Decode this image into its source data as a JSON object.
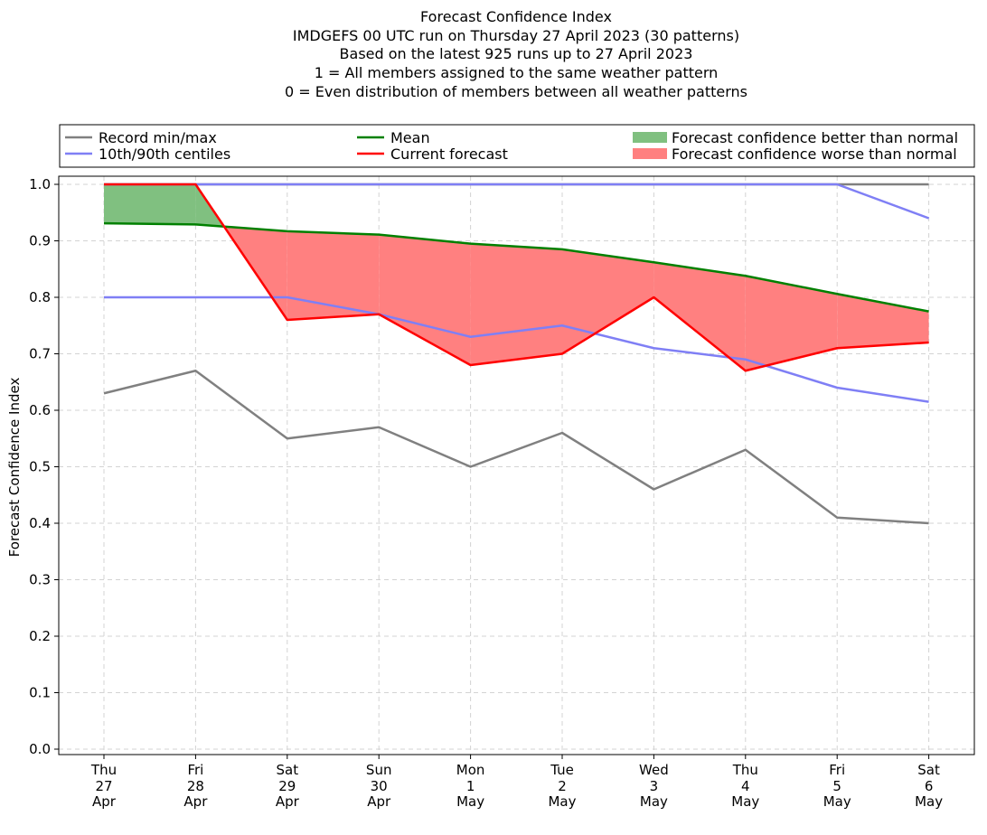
{
  "chart_data": {
    "type": "line",
    "title_lines": [
      "Forecast Confidence Index",
      "IMDGEFS 00 UTC run on Thursday 27 April 2023 (30 patterns)",
      "Based on the latest 925 runs up to 27 April 2023",
      "1 = All members assigned to the same weather pattern",
      "0 = Even distribution of members between all weather patterns"
    ],
    "ylabel": "Forecast Confidence Index",
    "ylim": [
      0.0,
      1.0
    ],
    "yticks": [
      "0.0",
      "0.1",
      "0.2",
      "0.3",
      "0.4",
      "0.5",
      "0.6",
      "0.7",
      "0.8",
      "0.9",
      "1.0"
    ],
    "grid": true,
    "categories": [
      {
        "day": "Thu",
        "date": "27",
        "month": "Apr"
      },
      {
        "day": "Fri",
        "date": "28",
        "month": "Apr"
      },
      {
        "day": "Sat",
        "date": "29",
        "month": "Apr"
      },
      {
        "day": "Sun",
        "date": "30",
        "month": "Apr"
      },
      {
        "day": "Mon",
        "date": "1",
        "month": "May"
      },
      {
        "day": "Tue",
        "date": "2",
        "month": "May"
      },
      {
        "day": "Wed",
        "date": "3",
        "month": "May"
      },
      {
        "day": "Thu",
        "date": "4",
        "month": "May"
      },
      {
        "day": "Fri",
        "date": "5",
        "month": "May"
      },
      {
        "day": "Sat",
        "date": "6",
        "month": "May"
      }
    ],
    "series": [
      {
        "name": "Record max",
        "color": "#808080",
        "values": [
          1.0,
          1.0,
          1.0,
          1.0,
          1.0,
          1.0,
          1.0,
          1.0,
          1.0,
          1.0
        ]
      },
      {
        "name": "Record min",
        "color": "#808080",
        "values": [
          0.63,
          0.67,
          0.55,
          0.57,
          0.5,
          0.56,
          0.46,
          0.53,
          0.41,
          0.4
        ]
      },
      {
        "name": "90th centile",
        "color": "#7f7ff5",
        "values": [
          1.0,
          1.0,
          1.0,
          1.0,
          1.0,
          1.0,
          1.0,
          1.0,
          1.0,
          0.94
        ]
      },
      {
        "name": "10th centile",
        "color": "#7f7ff5",
        "values": [
          0.8,
          0.8,
          0.8,
          0.77,
          0.73,
          0.75,
          0.71,
          0.69,
          0.64,
          0.615
        ]
      },
      {
        "name": "Mean",
        "color": "#008000",
        "values": [
          0.931,
          0.929,
          0.917,
          0.911,
          0.895,
          0.885,
          0.862,
          0.838,
          0.806,
          0.775
        ]
      },
      {
        "name": "Current forecast",
        "color": "#ff0000",
        "values": [
          1.0,
          1.0,
          0.76,
          0.77,
          0.68,
          0.7,
          0.8,
          0.67,
          0.71,
          0.72
        ]
      }
    ],
    "legend": {
      "placement": "top",
      "items": [
        {
          "label": "Record min/max",
          "kind": "line",
          "color": "#808080"
        },
        {
          "label": "10th/90th centiles",
          "kind": "line",
          "color": "#7f7ff5"
        },
        {
          "label": "Mean",
          "kind": "line",
          "color": "#008000"
        },
        {
          "label": "Current forecast",
          "kind": "line",
          "color": "#ff0000"
        },
        {
          "label": "Forecast confidence better than normal",
          "kind": "patch",
          "color": "#80c080"
        },
        {
          "label": "Forecast confidence worse than normal",
          "kind": "patch",
          "color": "#ff8080"
        }
      ]
    }
  }
}
